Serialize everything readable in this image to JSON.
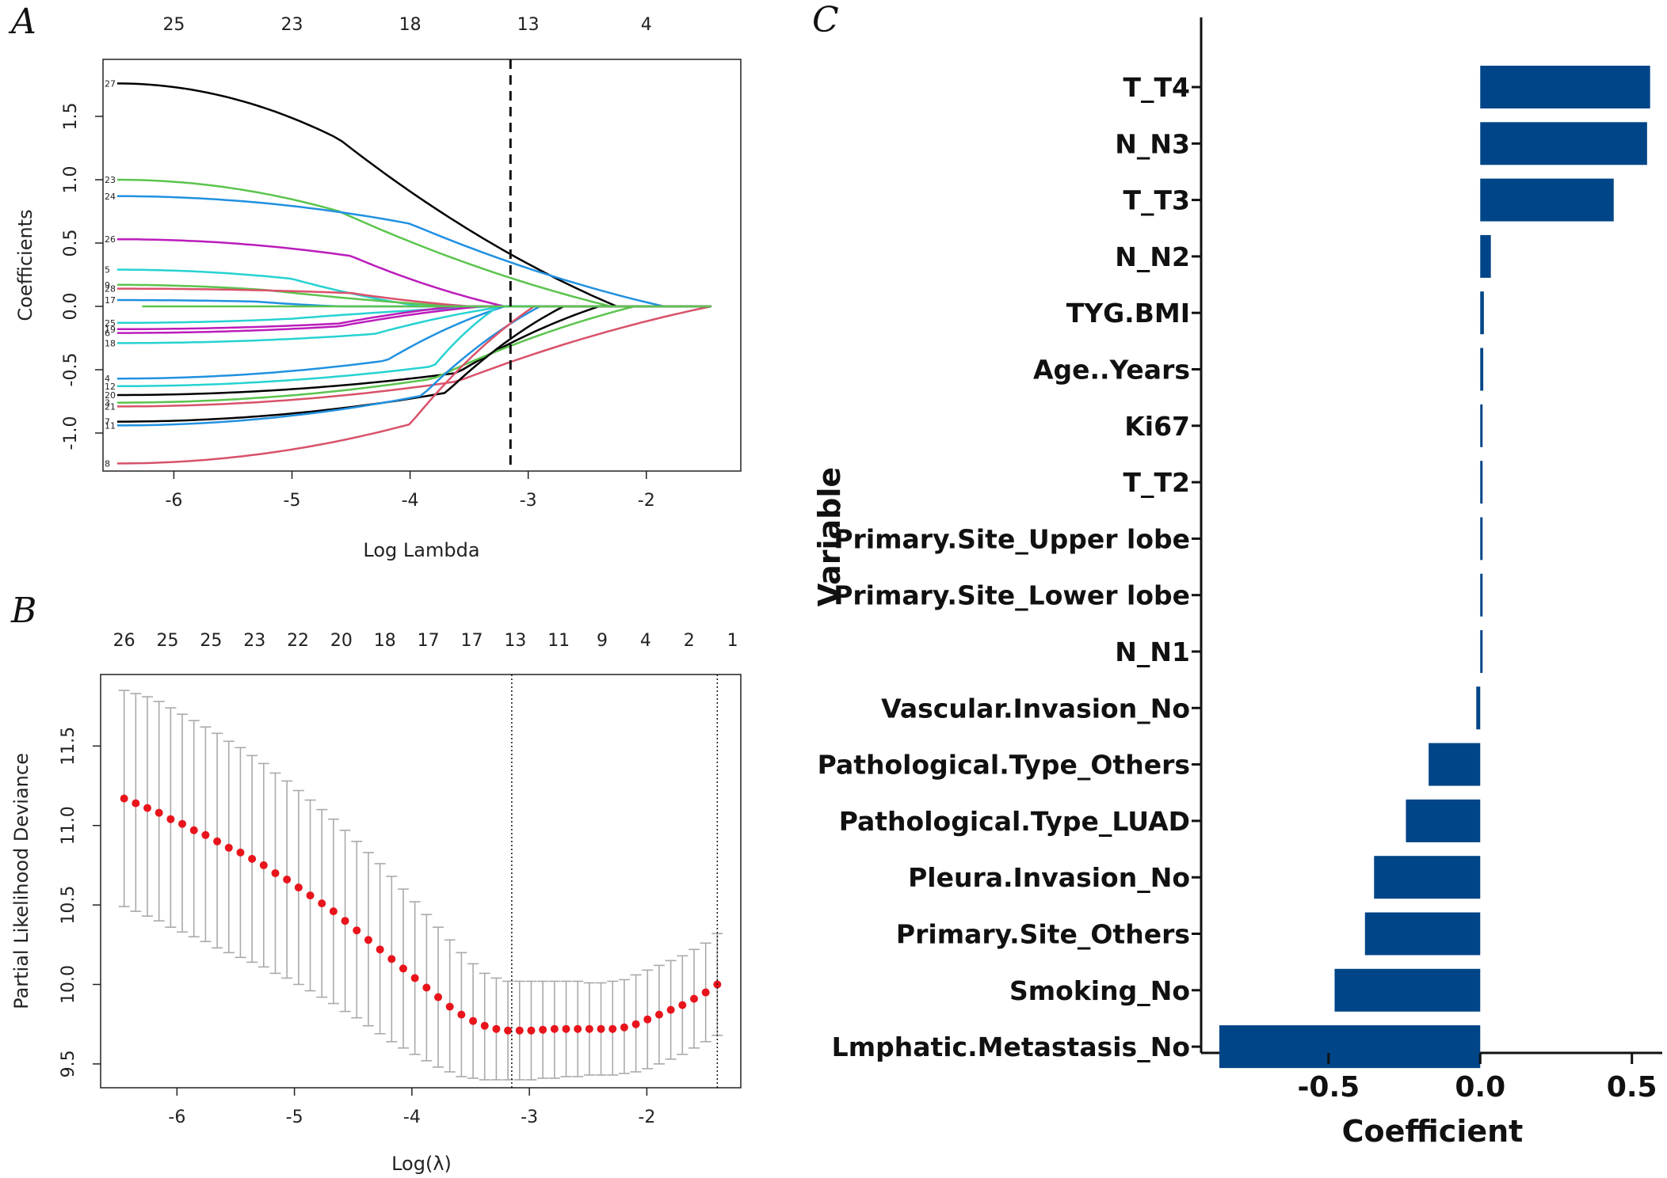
{
  "chart_data": [
    {
      "panel": "A",
      "type": "line",
      "title": "",
      "xlabel": "Log Lambda",
      "ylabel": "Coefficients",
      "xlim": [
        -6.6,
        -1.2
      ],
      "ylim": [
        -1.3,
        1.95
      ],
      "x_ticks": [
        "-6",
        "-5",
        "-4",
        "-3",
        "-2"
      ],
      "x_tick_values": [
        -6,
        -5,
        -4,
        -3,
        -2
      ],
      "y_ticks": [
        "-1.0",
        "-0.5",
        "0.0",
        "0.5",
        "1.0",
        "1.5"
      ],
      "y_tick_values": [
        -1.0,
        -0.5,
        0.0,
        0.5,
        1.0,
        1.5
      ],
      "top_axis_labels": [
        "25",
        "23",
        "18",
        "13",
        "4"
      ],
      "top_axis_positions": [
        -6,
        -5,
        -4,
        -3,
        -2
      ],
      "vline": -3.15,
      "paths": [
        {
          "label": "27",
          "color": "#000000",
          "start": 1.76,
          "bend": -4.6,
          "end": -2.25,
          "x1": -6.48
        },
        {
          "label": "23",
          "color": "#5bc44e",
          "start": 1.0,
          "bend": -4.6,
          "end": -2.3,
          "x1": -6.48
        },
        {
          "label": "24",
          "color": "#2191e0",
          "start": 0.87,
          "bend": -4.0,
          "end": -1.85,
          "x1": -6.48
        },
        {
          "label": "26",
          "color": "#bb1cbb",
          "start": 0.53,
          "bend": -4.5,
          "end": -3.2,
          "x1": -6.48
        },
        {
          "label": "5",
          "color": "#27d2d2",
          "start": 0.29,
          "bend": -5.0,
          "end": -3.9,
          "x1": -6.48
        },
        {
          "label": "9",
          "color": "#5bc44e",
          "start": 0.17,
          "bend": -5.2,
          "end": -3.6,
          "x1": -6.48
        },
        {
          "label": "28",
          "color": "#d9526a",
          "start": 0.14,
          "bend": -4.5,
          "end": -3.5,
          "x1": -6.48
        },
        {
          "label": "17",
          "color": "#2191e0",
          "start": 0.05,
          "bend": -5.3,
          "end": -4.6,
          "x1": -6.48
        },
        {
          "label": "25",
          "color": "#27d2d2",
          "start": -0.13,
          "bend": -5.0,
          "end": -3.3,
          "x1": -6.48
        },
        {
          "label": "19",
          "color": "#bb1cbb",
          "start": -0.18,
          "bend": -4.6,
          "end": -3.6,
          "x1": -6.48
        },
        {
          "label": "6",
          "color": "#bb1cbb",
          "start": -0.21,
          "bend": -4.6,
          "end": -3.4,
          "x1": -6.48
        },
        {
          "label": "18",
          "color": "#27d2d2",
          "start": -0.29,
          "bend": -4.3,
          "end": -3.2,
          "x1": -6.48
        },
        {
          "label": "4",
          "color": "#2191e0",
          "start": -0.57,
          "bend": -4.2,
          "end": -3.2,
          "x1": -6.48
        },
        {
          "label": "12",
          "color": "#27d2d2",
          "start": -0.63,
          "bend": -3.8,
          "end": -3.25,
          "x1": -6.48
        },
        {
          "label": "20",
          "color": "#000000",
          "start": -0.7,
          "bend": -3.6,
          "end": -2.4,
          "x1": -6.48
        },
        {
          "label": "3",
          "color": "#5bc44e",
          "start": -0.76,
          "bend": -3.8,
          "end": -2.1,
          "x1": -6.48
        },
        {
          "label": "21",
          "color": "#d9526a",
          "start": -0.79,
          "bend": -3.6,
          "end": -1.45,
          "x1": -6.48
        },
        {
          "label": "7",
          "color": "#000000",
          "start": -0.91,
          "bend": -3.7,
          "end": -2.7,
          "x1": -6.48
        },
        {
          "label": "11",
          "color": "#2191e0",
          "start": -0.94,
          "bend": -3.9,
          "end": -2.9,
          "x1": -6.48
        },
        {
          "label": "8",
          "color": "#d9526a",
          "start": -1.24,
          "bend": -4.0,
          "end": -2.95,
          "x1": -6.48
        }
      ]
    },
    {
      "panel": "B",
      "type": "scatter",
      "title": "",
      "xlabel": "Log(λ)",
      "ylabel": "Partial Likelihood Deviance",
      "xlim": [
        -6.65,
        -1.2
      ],
      "ylim": [
        9.35,
        11.95
      ],
      "x_ticks": [
        "-6",
        "-5",
        "-4",
        "-3",
        "-2"
      ],
      "x_tick_values": [
        -6,
        -5,
        -4,
        -3,
        -2
      ],
      "y_ticks": [
        "9.5",
        "10.0",
        "10.5",
        "11.0",
        "11.5"
      ],
      "y_tick_values": [
        9.5,
        10.0,
        10.5,
        11.0,
        11.5
      ],
      "top_axis_labels": [
        "26",
        "25",
        "25",
        "23",
        "22",
        "20",
        "18",
        "17",
        "17",
        "13",
        "11",
        "9",
        "4",
        "2",
        "1"
      ],
      "top_axis_positions": [
        -6.45,
        -6.08,
        -5.71,
        -5.34,
        -4.97,
        -4.6,
        -4.23,
        -3.86,
        -3.49,
        -3.12,
        -2.75,
        -2.38,
        -2.01,
        -1.64,
        -1.27
      ],
      "vlines": [
        -3.15,
        -1.4
      ],
      "points_x_start": -6.45,
      "points_x_end": -1.4,
      "points_mean": [
        11.17,
        11.14,
        11.11,
        11.08,
        11.04,
        11.01,
        10.97,
        10.94,
        10.9,
        10.86,
        10.83,
        10.79,
        10.75,
        10.7,
        10.66,
        10.61,
        10.56,
        10.51,
        10.46,
        10.4,
        10.34,
        10.28,
        10.22,
        10.16,
        10.1,
        10.04,
        9.98,
        9.92,
        9.86,
        9.81,
        9.77,
        9.74,
        9.72,
        9.71,
        9.71,
        9.71,
        9.715,
        9.72,
        9.72,
        9.72,
        9.72,
        9.72,
        9.72,
        9.73,
        9.75,
        9.78,
        9.81,
        9.84,
        9.87,
        9.91,
        9.95,
        10.0
      ],
      "points_upper": [
        11.85,
        11.83,
        11.81,
        11.78,
        11.74,
        11.7,
        11.66,
        11.62,
        11.58,
        11.53,
        11.49,
        11.44,
        11.39,
        11.33,
        11.28,
        11.22,
        11.16,
        11.1,
        11.04,
        10.97,
        10.9,
        10.83,
        10.76,
        10.68,
        10.6,
        10.52,
        10.44,
        10.36,
        10.28,
        10.2,
        10.13,
        10.07,
        10.04,
        10.02,
        10.02,
        10.02,
        10.02,
        10.02,
        10.02,
        10.02,
        10.01,
        10.01,
        10.02,
        10.03,
        10.06,
        10.09,
        10.12,
        10.15,
        10.18,
        10.22,
        10.26,
        10.32
      ],
      "points_lower": [
        10.49,
        10.46,
        10.43,
        10.4,
        10.36,
        10.33,
        10.3,
        10.27,
        10.23,
        10.2,
        10.17,
        10.14,
        10.11,
        10.07,
        10.04,
        10.0,
        9.96,
        9.92,
        9.88,
        9.83,
        9.79,
        9.74,
        9.69,
        9.64,
        9.6,
        9.56,
        9.52,
        9.48,
        9.45,
        9.42,
        9.41,
        9.4,
        9.4,
        9.4,
        9.4,
        9.4,
        9.41,
        9.41,
        9.42,
        9.42,
        9.43,
        9.43,
        9.43,
        9.44,
        9.45,
        9.47,
        9.5,
        9.53,
        9.56,
        9.6,
        9.64,
        9.68
      ]
    },
    {
      "panel": "C",
      "type": "bar",
      "orientation": "horizontal",
      "title": "",
      "xlabel": "Coefficient",
      "ylabel": "Variable",
      "xlim": [
        -0.92,
        0.6
      ],
      "x_ticks": [
        "-0.5",
        "0.0",
        "0.5"
      ],
      "x_tick_values": [
        -0.5,
        0.0,
        0.5
      ],
      "bar_color": "#004587",
      "categories": [
        "T_T4",
        "N_N3",
        "T_T3",
        "N_N2",
        "TYG.BMI",
        "Age..Years",
        "Ki67",
        "T_T2",
        "Primary.Site_Upper lobe",
        "Primary.Site_Lower lobe",
        "N_N1",
        "Vascular.Invasion_No",
        "Pathological.Type_Others",
        "Pathological.Type_LUAD",
        "Pleura.Invasion_No",
        "Primary.Site_Others",
        "Smoking_No",
        "Lmphatic.Metastasis_No"
      ],
      "values": [
        0.56,
        0.55,
        0.44,
        0.035,
        0.012,
        0.01,
        0.006,
        0.004,
        0.003,
        0.003,
        0.004,
        -0.013,
        -0.17,
        -0.245,
        -0.35,
        -0.38,
        -0.48,
        -0.86
      ]
    }
  ],
  "panel_letters": {
    "a": "A",
    "b": "B",
    "c": "C"
  }
}
